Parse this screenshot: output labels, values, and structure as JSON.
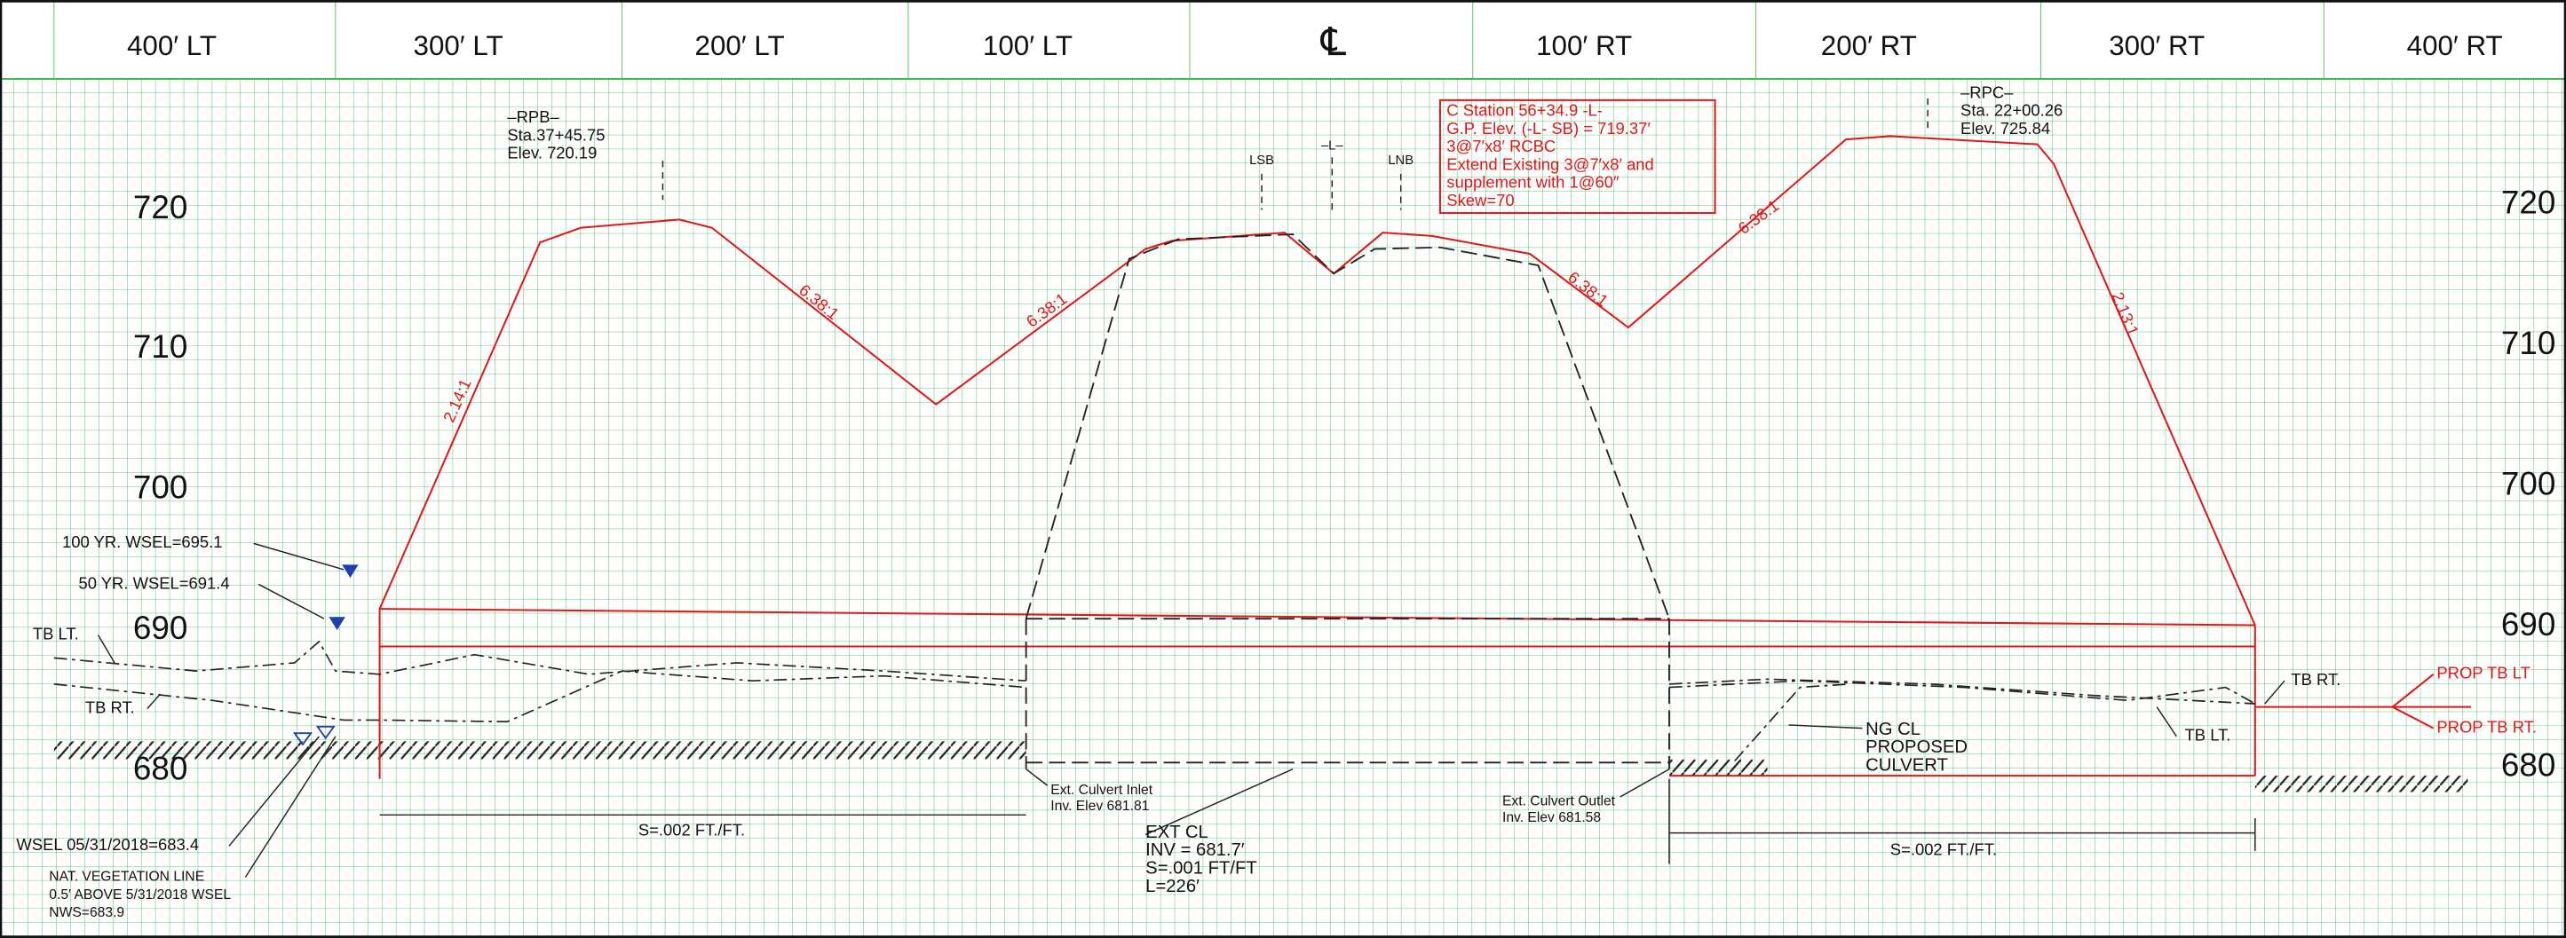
{
  "header": {
    "labels": [
      "400′ LT",
      "300′ LT",
      "200′ LT",
      "100′ LT",
      "℄",
      "100′ RT",
      "200′ RT",
      "300′ RT",
      "400′ RT"
    ]
  },
  "elevations": {
    "left": [
      "720",
      "710",
      "700",
      "690",
      "680"
    ],
    "right": [
      "720",
      "710",
      "700",
      "690",
      "680"
    ]
  },
  "rpb": [
    "–RPB–",
    "Sta.37+45.75",
    "Elev. 720.19"
  ],
  "rpc": [
    "–RPC–",
    "Sta. 22+00.26",
    "Elev. 725.84"
  ],
  "centerline_marks": [
    "LSB",
    "–L–",
    "LNB"
  ],
  "station_box": [
    "C  Station  56+34.9  -L-",
    "G.P. Elev. (-L- SB) =  719.37′",
    "3@7′x8′ RCBC",
    "Extend  Existing  3@7′x8′ and",
    "supplement with  1@60″",
    "Skew=70"
  ],
  "slopes": [
    "2.14:1",
    "6.38:1",
    "6.38:1",
    "6.38:1",
    "6.38:1",
    "2.13:1"
  ],
  "left_notes": {
    "wsel_100": "100  YR. WSEL=695.1",
    "wsel_50": "50  YR. WSEL=691.4",
    "tb_lt": "TB  LT.",
    "tb_rt": "TB  RT.",
    "wsel_date": "WSEL  05/31/2018=683.4",
    "vegetation": [
      "NAT.  VEGETATION  LINE",
      "0.5′  ABOVE  5/31/2018  WSEL",
      "NWS=683.9"
    ]
  },
  "inlet": [
    "Ext. Culvert Inlet",
    "Inv. Elev  681.81"
  ],
  "outlet": [
    "Ext. Culvert Outlet",
    "Inv. Elev  681.58"
  ],
  "ext_cl": [
    "EXT  CL",
    "INV =   681.7′",
    "S=.001  FT/FT",
    "L=226′"
  ],
  "slope_left": "S=.002  FT./FT.",
  "slope_right": "S=.002  FT./FT.",
  "proposed": [
    "NG  CL",
    "PROPOSED",
    "CULVERT"
  ],
  "right_notes": {
    "tb_rt": "TB  RT.",
    "tb_lt": "TB  LT.",
    "prop_tb_lt": "PROP  TB  LT",
    "prop_tb_rt": "PROP  TB  RT."
  }
}
